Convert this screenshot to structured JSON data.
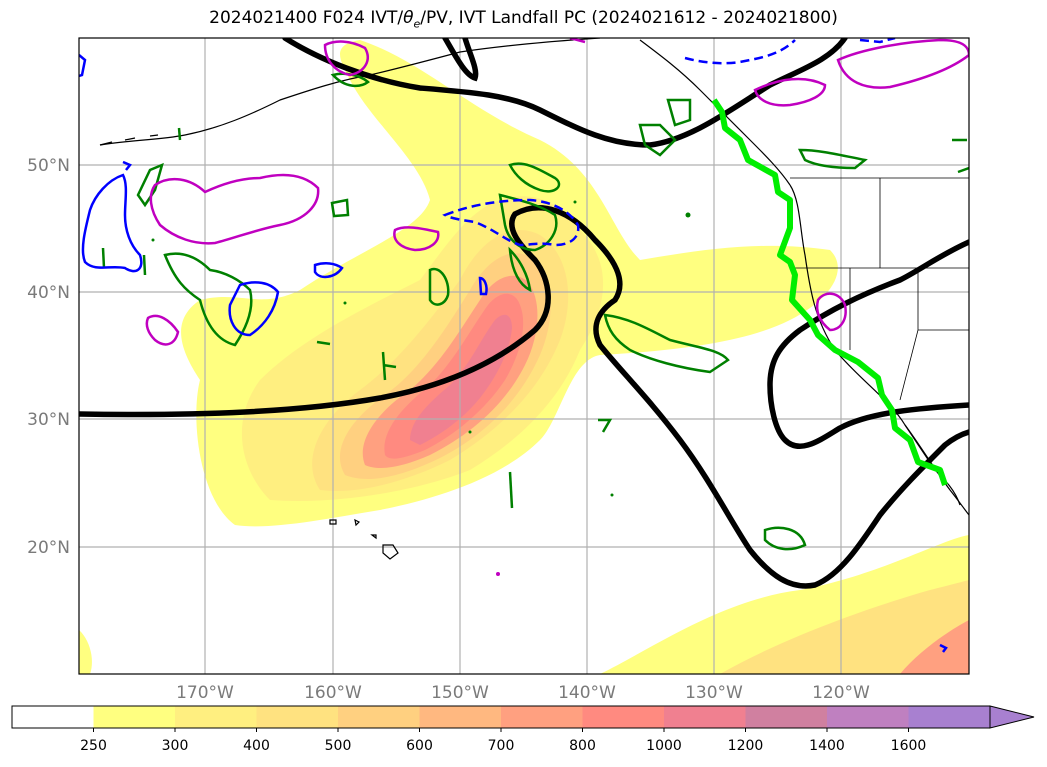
{
  "title": {
    "prefix": "2024021400 F024 IVT/",
    "theta": "θ",
    "theta_sub": "e",
    "suffix": "/PV, IVT Landfall PC (2024021612 - 2024021800)"
  },
  "map": {
    "lon_ticks": [
      "170°W",
      "160°W",
      "150°W",
      "140°W",
      "130°W",
      "120°W"
    ],
    "lat_ticks": [
      "50°N",
      "40°N",
      "30°N",
      "20°N"
    ]
  },
  "colorbar": {
    "levels": [
      "250",
      "300",
      "400",
      "500",
      "600",
      "700",
      "800",
      "1000",
      "1200",
      "1400",
      "1600"
    ],
    "colors": [
      "#ffffff",
      "#ffff80",
      "#ffef80",
      "#ffe280",
      "#ffd080",
      "#ffb880",
      "#ffa080",
      "#ff8a80",
      "#f08090",
      "#d080a0",
      "#bf80c0",
      "#a880d0"
    ]
  },
  "style": {
    "ivt_low": "#ffff80",
    "ivt_mid": "#ffd080",
    "ivt_high": "#ff8a80",
    "ivt_peak": "#f08090",
    "theta_contour": "#000000",
    "pv_green": "#008000",
    "pv_magenta": "#c000c0",
    "pv_blue": "#0000ff",
    "landfall": "#00ee00"
  }
}
